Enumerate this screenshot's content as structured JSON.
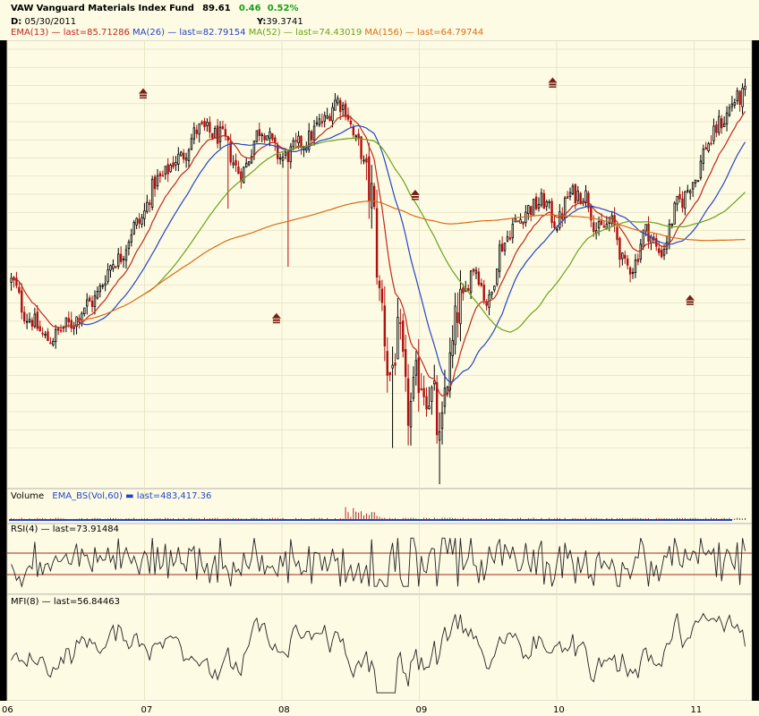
{
  "header": {
    "symbol": "VAW",
    "fund_name": "Vanguard Materials Index Fund",
    "price": "89.61",
    "change": "0.46",
    "change_pct": "0.52%",
    "date_label": "D:",
    "date_value": "05/30/2011",
    "y_label": "Y:",
    "y_value": "39.3741"
  },
  "legend": [
    {
      "label": "EMA(13)",
      "sep": " — ",
      "value": "last=85.71286",
      "color": "#c0281e"
    },
    {
      "label": "MA(26)",
      "sep": " — ",
      "value": "last=82.79154",
      "color": "#2446c4"
    },
    {
      "label": "MA(52)",
      "sep": " — ",
      "value": "last=74.43019",
      "color": "#6da21a"
    },
    {
      "label": "MA(156)",
      "sep": " — ",
      "value": "last=64.79744",
      "color": "#d86d15"
    }
  ],
  "volume_panel": {
    "title": "Volume",
    "indicator": "EMA_BS(Vol,60)",
    "value": "last=483,417.36",
    "color": "#2446c4"
  },
  "rsi_panel": {
    "title": "RSI(4)",
    "sep": " — ",
    "value": "last=73.91484"
  },
  "mfi_panel": {
    "title": "MFI(8)",
    "sep": " — ",
    "value": "last=56.84463"
  },
  "colors": {
    "background": "#fdfbe4",
    "frame": "#000000",
    "grid": "#e4e0c0",
    "candle_up": "#000000",
    "candle_down": "#b01010",
    "arrow": "#7a1f14",
    "rsi_band": "#a0281e"
  },
  "chart_data": {
    "type": "candlestick",
    "title": "VAW Vanguard Materials Index Fund",
    "x_tick_labels": [
      "06",
      "07",
      "08",
      "09",
      "10",
      "11"
    ],
    "x_tick_positions_years": [
      2006,
      2007,
      2008,
      2009,
      2010,
      2011
    ],
    "x_range_years": [
      2006.0,
      2011.42
    ],
    "price_range": [
      40,
      100
    ],
    "price_anchors": {
      "t": [
        2006.03,
        2006.15,
        2006.3,
        2006.45,
        2006.6,
        2006.8,
        2006.95,
        2007.1,
        2007.25,
        2007.4,
        2007.55,
        2007.7,
        2007.85,
        2008.0,
        2008.15,
        2008.3,
        2008.4,
        2008.45,
        2008.55,
        2008.65,
        2008.72,
        2008.78,
        2008.85,
        2008.92,
        2009.0,
        2009.05,
        2009.1,
        2009.15,
        2009.2,
        2009.3,
        2009.4,
        2009.5,
        2009.6,
        2009.7,
        2009.8,
        2009.9,
        2010.0,
        2010.1,
        2010.2,
        2010.3,
        2010.4,
        2010.5,
        2010.55,
        2010.65,
        2010.75,
        2010.9,
        2011.0,
        2011.1,
        2011.2,
        2011.3,
        2011.4
      ],
      "v": [
        68,
        63,
        60,
        62,
        65,
        71,
        76,
        82,
        85,
        89,
        88,
        83,
        89,
        85,
        87,
        90,
        93,
        92,
        87,
        80,
        65,
        55,
        60,
        50,
        55,
        53,
        52,
        45,
        55,
        65,
        70,
        65,
        73,
        76,
        78,
        79,
        76,
        80,
        80,
        75,
        76,
        70,
        70,
        75,
        72,
        79,
        82,
        87,
        90,
        93,
        94
      ]
    },
    "arrow_markers": [
      {
        "t": 2006.99,
        "price": 94.0,
        "direction": "up"
      },
      {
        "t": 2007.96,
        "price": 63.0,
        "direction": "up"
      },
      {
        "t": 2008.97,
        "price": 80.0,
        "direction": "up"
      },
      {
        "t": 2009.97,
        "price": 95.5,
        "direction": "up"
      },
      {
        "t": 2010.97,
        "price": 65.5,
        "direction": "up"
      }
    ],
    "indicators": [
      {
        "name": "EMA(13)",
        "period": 13,
        "last": 85.71286
      },
      {
        "name": "MA(26)",
        "period": 26,
        "last": 82.79154
      },
      {
        "name": "MA(52)",
        "period": 52,
        "last": 74.43019
      },
      {
        "name": "MA(156)",
        "period": 156,
        "last": 64.79744
      }
    ],
    "rsi": {
      "name": "RSI(4)",
      "range": [
        0,
        100
      ],
      "bands": [
        70,
        30
      ],
      "last": 73.91484
    },
    "mfi": {
      "name": "MFI(8)",
      "range": [
        0,
        100
      ],
      "last": 56.84463
    },
    "volume": {
      "name": "EMA_BS(Vol,60)",
      "last": 483417.36
    }
  }
}
